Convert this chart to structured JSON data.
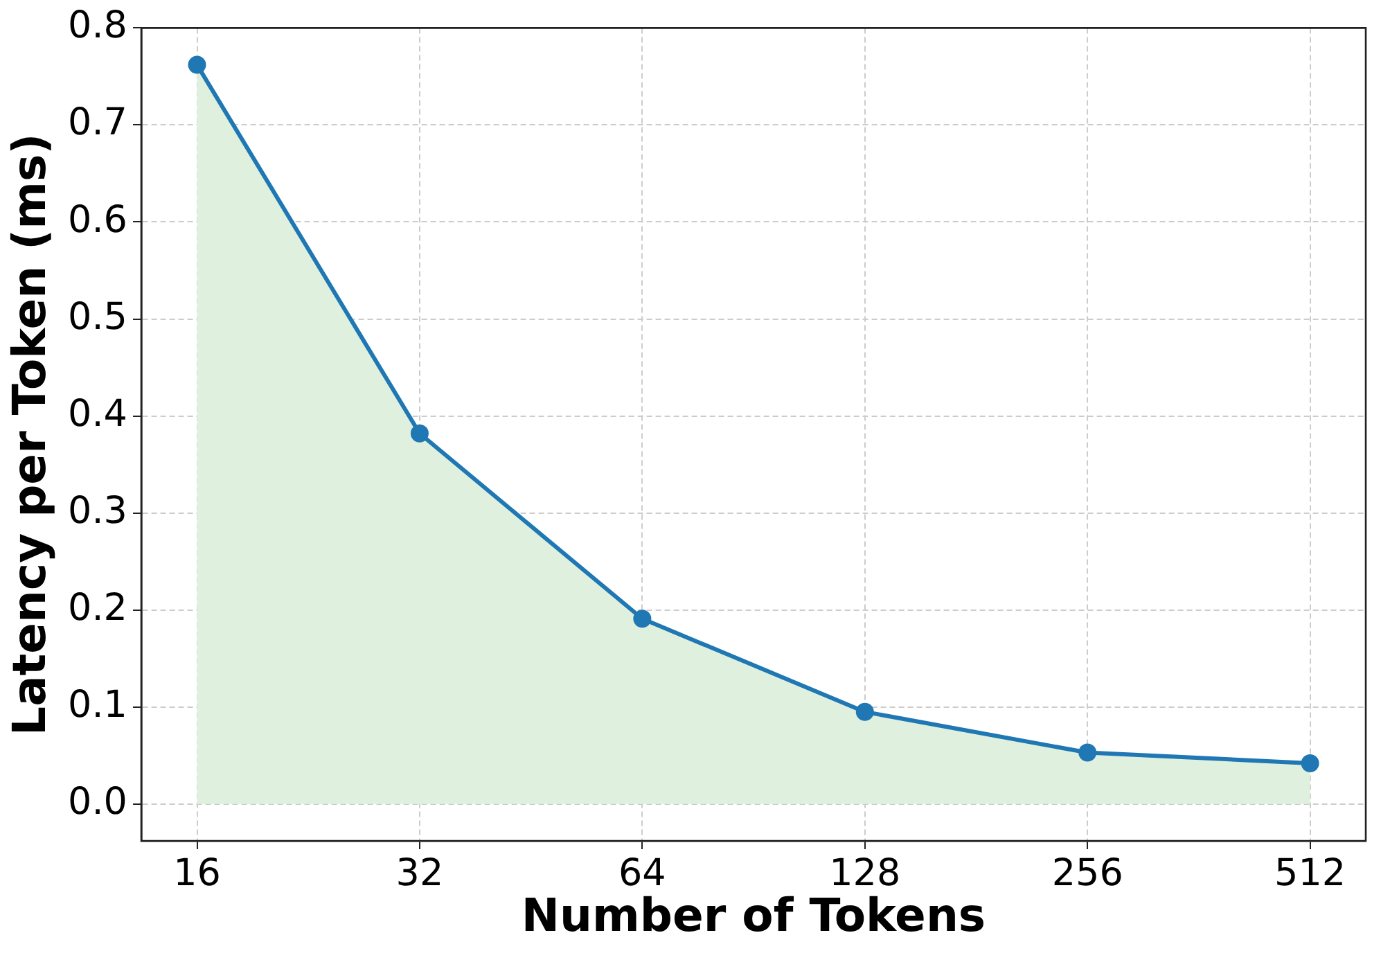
{
  "chart_data": {
    "type": "line",
    "xlabel": "Number of Tokens",
    "ylabel": "Latency per Token (ms)",
    "x": [
      16,
      32,
      64,
      128,
      256,
      512
    ],
    "series": [
      {
        "type": "line",
        "color": "#1f77b4",
        "values": [
          0.762,
          0.382,
          0.191,
          0.095,
          0.053,
          0.042
        ],
        "lower": [
          0,
          0,
          0,
          0,
          0,
          0
        ],
        "upper": [
          0.762,
          0.382,
          0.191,
          0.095,
          0.053,
          0.042
        ]
      }
    ],
    "log": "x",
    "xlim": [
      13.45,
      608.9
    ],
    "xticks": [
      16,
      32,
      64,
      128,
      256,
      512
    ],
    "ylim": [
      -0.038,
      0.8
    ],
    "yticks": [
      {
        "value": 0,
        "label": "0.0"
      },
      0.1,
      0.2,
      0.3,
      0.4,
      0.5,
      0.6,
      0.7,
      0.8
    ],
    "grid": true,
    "marker": "circle",
    "line_style": "solid"
  }
}
